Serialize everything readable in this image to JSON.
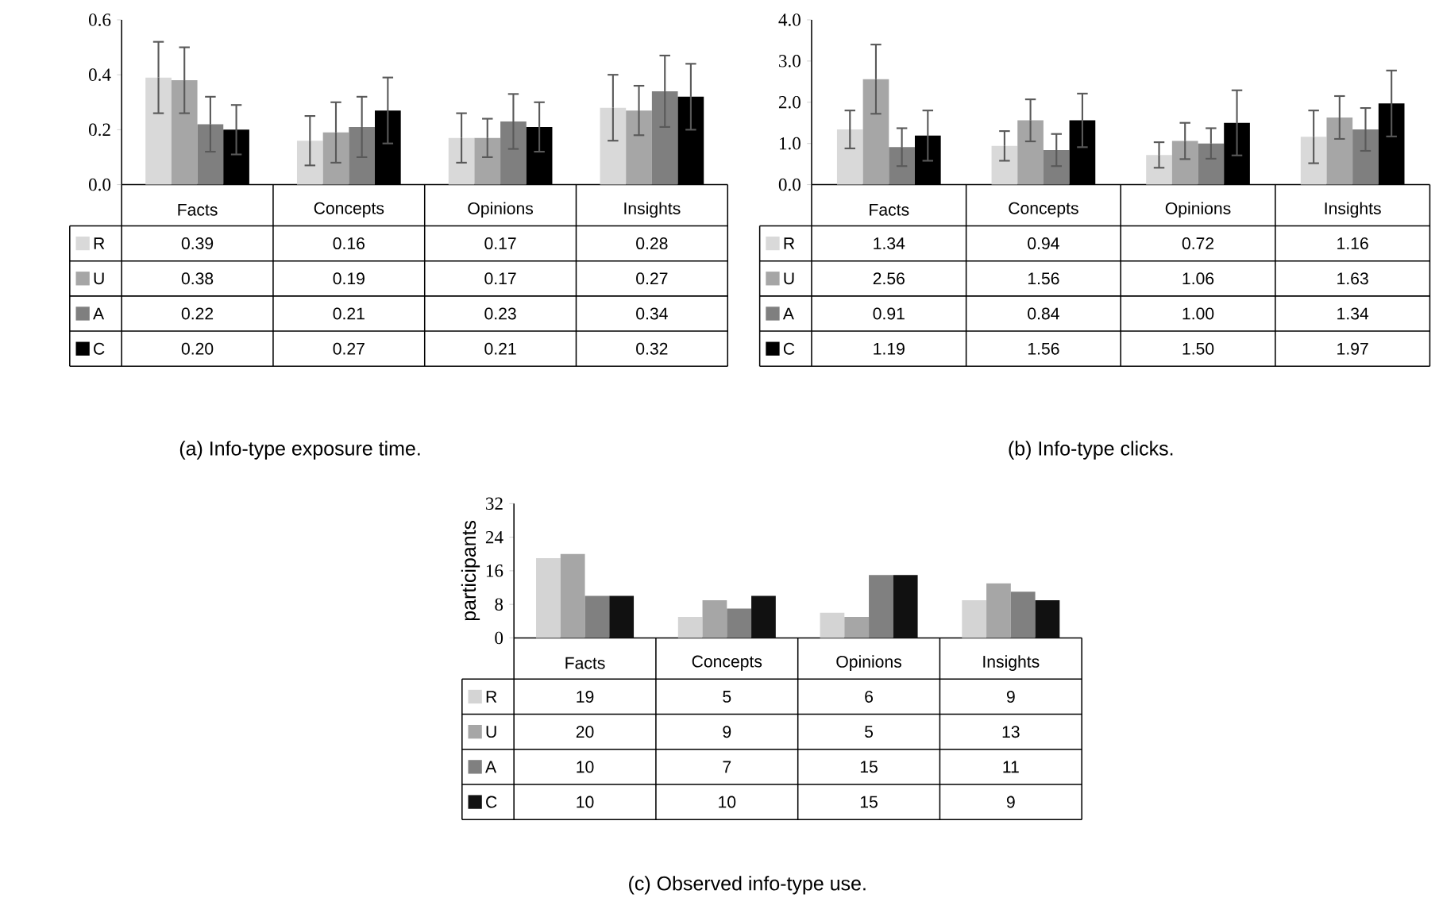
{
  "chart_data": [
    {
      "type": "bar",
      "categories": [
        "Facts",
        "Concepts",
        "Opinions",
        "Insights"
      ],
      "ylim": [
        0,
        0.6
      ],
      "yticks": [
        {
          "value": 0,
          "label": "0.0"
        },
        {
          "value": 0.2,
          "label": "0.2"
        },
        {
          "value": 0.4,
          "label": "0.4"
        },
        {
          "value": 0.6,
          "label": "0.6"
        }
      ],
      "legend": "bottom",
      "annotations": [
        "(a) Info-type exposure time."
      ],
      "series": [
        {
          "name": "R",
          "color": "#d9d9d9",
          "values": [
            0.39,
            0.16,
            0.17,
            0.28
          ],
          "errors": [
            0.13,
            0.09,
            0.09,
            0.12
          ],
          "value_labels": [
            "0.39",
            "0.16",
            "0.17",
            "0.28"
          ]
        },
        {
          "name": "U",
          "color": "#a6a6a6",
          "values": [
            0.38,
            0.19,
            0.17,
            0.27
          ],
          "errors": [
            0.12,
            0.11,
            0.07,
            0.09
          ],
          "value_labels": [
            "0.38",
            "0.19",
            "0.17",
            "0.27"
          ]
        },
        {
          "name": "A",
          "color": "#7f7f7f",
          "values": [
            0.22,
            0.21,
            0.23,
            0.34
          ],
          "errors": [
            0.1,
            0.11,
            0.1,
            0.13
          ],
          "value_labels": [
            "0.22",
            "0.21",
            "0.23",
            "0.34"
          ]
        },
        {
          "name": "C",
          "color": "#000000",
          "values": [
            0.2,
            0.27,
            0.21,
            0.32
          ],
          "errors": [
            0.09,
            0.12,
            0.09,
            0.12
          ],
          "value_labels": [
            "0.20",
            "0.27",
            "0.21",
            "0.32"
          ]
        }
      ]
    },
    {
      "type": "bar",
      "categories": [
        "Facts",
        "Concepts",
        "Opinions",
        "Insights"
      ],
      "ylim": [
        0,
        4
      ],
      "yticks": [
        {
          "value": 0,
          "label": "0.0"
        },
        {
          "value": 1,
          "label": "1.0"
        },
        {
          "value": 2,
          "label": "2.0"
        },
        {
          "value": 3,
          "label": "3.0"
        },
        {
          "value": 4,
          "label": "4.0"
        }
      ],
      "legend": "bottom",
      "annotations": [
        "(b) Info-type clicks."
      ],
      "series": [
        {
          "name": "R",
          "color": "#d9d9d9",
          "values": [
            1.34,
            0.94,
            0.72,
            1.16
          ],
          "errors": [
            0.46,
            0.36,
            0.31,
            0.64
          ],
          "value_labels": [
            "1.34",
            "0.94",
            "0.72",
            "1.16"
          ]
        },
        {
          "name": "U",
          "color": "#a6a6a6",
          "values": [
            2.56,
            1.56,
            1.06,
            1.63
          ],
          "errors": [
            0.84,
            0.51,
            0.44,
            0.52
          ],
          "value_labels": [
            "2.56",
            "1.56",
            "1.06",
            "1.63"
          ]
        },
        {
          "name": "A",
          "color": "#7f7f7f",
          "values": [
            0.91,
            0.84,
            1.0,
            1.34
          ],
          "errors": [
            0.46,
            0.39,
            0.37,
            0.52
          ],
          "value_labels": [
            "0.91",
            "0.84",
            "1.00",
            "1.34"
          ]
        },
        {
          "name": "C",
          "color": "#000000",
          "values": [
            1.19,
            1.56,
            1.5,
            1.97
          ],
          "errors": [
            0.61,
            0.65,
            0.79,
            0.8
          ],
          "value_labels": [
            "1.19",
            "1.56",
            "1.50",
            "1.97"
          ]
        }
      ]
    },
    {
      "type": "bar",
      "categories": [
        "Facts",
        "Concepts",
        "Opinions",
        "Insights"
      ],
      "ylabel": "participants",
      "ylim": [
        0,
        32
      ],
      "yticks": [
        0,
        8,
        16,
        24,
        32
      ],
      "legend": "bottom",
      "data_labels": true,
      "annotations": [
        "(c) Observed info-type use."
      ],
      "series": [
        {
          "name": "R",
          "color": "#d4d4d4",
          "values": [
            19,
            5,
            6,
            9
          ]
        },
        {
          "name": "U",
          "color": "#a6a6a6",
          "values": [
            20,
            9,
            5,
            13
          ]
        },
        {
          "name": "A",
          "color": "#808080",
          "values": [
            10,
            7,
            15,
            11
          ]
        },
        {
          "name": "C",
          "color": "#111111",
          "values": [
            10,
            10,
            15,
            9
          ]
        }
      ]
    }
  ]
}
